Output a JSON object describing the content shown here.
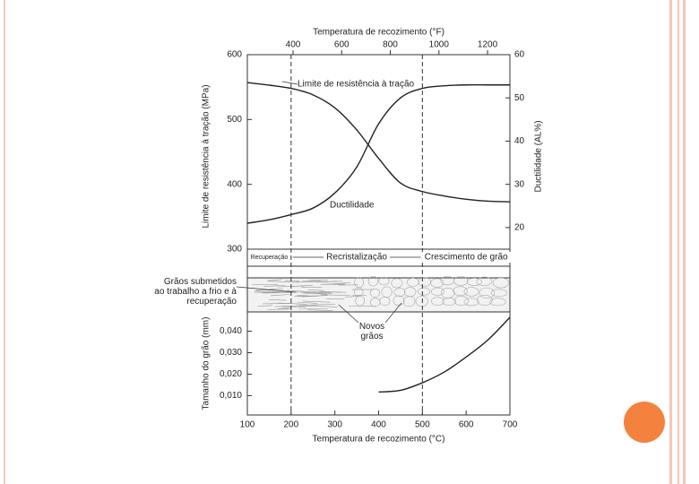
{
  "chart_data": [
    {
      "type": "line",
      "x2label": "Temperatura de recozimento (°F)",
      "x2lim": [
        212,
        1292
      ],
      "x2ticks": [
        400,
        600,
        800,
        1000,
        1200
      ],
      "xlim": [
        100,
        700
      ],
      "ylabel": "Limite de resistência à tração (MPa)",
      "ylim": [
        300,
        600
      ],
      "yticks": [
        300,
        400,
        500,
        600
      ],
      "y2label": "Ductilidade (AL%)",
      "y2lim": [
        15,
        60
      ],
      "y2ticks": [
        20,
        30,
        40,
        50,
        60
      ],
      "x": [
        100,
        150,
        200,
        250,
        300,
        350,
        400,
        450,
        500,
        550,
        600,
        650,
        700
      ],
      "series": [
        {
          "name": "Limite de resistência à tração",
          "color": "#222222",
          "values": [
            557,
            553,
            548,
            538,
            518,
            484,
            440,
            402,
            389,
            382,
            377,
            374,
            373
          ]
        },
        {
          "name": "Ductilidade",
          "color": "#222222",
          "axis": "y2",
          "values": [
            21,
            21.8,
            23,
            24.5,
            28,
            34,
            44,
            50,
            52.2,
            52.8,
            53,
            53,
            53
          ]
        }
      ],
      "regions": [
        {
          "label": "Recuperação",
          "from": 100,
          "to": 200
        },
        {
          "label": "Recristalização",
          "from": 200,
          "to": 500
        },
        {
          "label": "Crescimento de grão",
          "from": 500,
          "to": 700
        }
      ],
      "micrograph_labels": [
        "Grãos submetidos ao trabalho a frio e à recuperação",
        "Novos grãos"
      ]
    },
    {
      "type": "line",
      "xlabel": "Temperatura de recozimento (°C)",
      "xlim": [
        100,
        700
      ],
      "xticks": [
        100,
        200,
        300,
        400,
        500,
        600,
        700
      ],
      "ylabel": "Tamanho do grão (mm)",
      "ylim": [
        0.001,
        0.049
      ],
      "yticks": [
        {
          "value": 0.01,
          "label": "0,010"
        },
        {
          "value": 0.02,
          "label": "0,020"
        },
        {
          "value": 0.03,
          "label": "0,030"
        },
        {
          "value": 0.04,
          "label": "0,040"
        }
      ],
      "color": "#222222",
      "x": [
        400,
        450,
        500,
        550,
        600,
        650,
        700
      ],
      "values": [
        0.0117,
        0.0125,
        0.016,
        0.021,
        0.028,
        0.036,
        0.0465
      ]
    }
  ]
}
